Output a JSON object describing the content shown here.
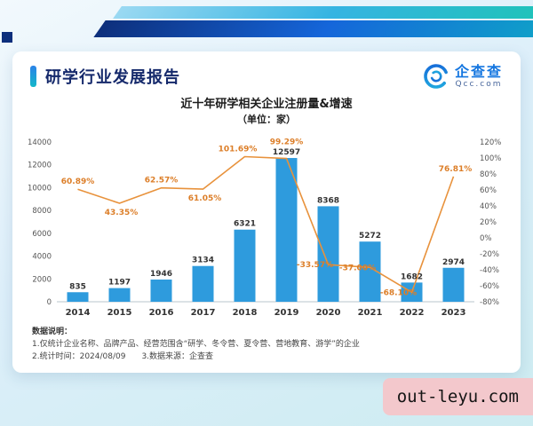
{
  "header": {
    "title": "研学行业发展报告",
    "logo": {
      "name": "企查查",
      "domain": "Qcc.com"
    }
  },
  "chart": {
    "title": "近十年研学相关企业注册量&增速",
    "unit_label": "（单位：家）"
  },
  "chart_data": {
    "type": "bar",
    "title": "近十年研学相关企业注册量&增速",
    "unit": "家",
    "categories": [
      "2014",
      "2015",
      "2016",
      "2017",
      "2018",
      "2019",
      "2020",
      "2021",
      "2022",
      "2023"
    ],
    "series": [
      {
        "name": "企业注册量",
        "type": "bar",
        "axis": "left",
        "values": [
          835,
          1197,
          1946,
          3134,
          6321,
          12597,
          8368,
          5272,
          1682,
          2974
        ]
      },
      {
        "name": "增速",
        "type": "line",
        "axis": "right",
        "values": [
          60.89,
          43.35,
          62.57,
          61.05,
          101.69,
          99.29,
          -33.57,
          -37.0,
          -68.1,
          76.81
        ],
        "labels": [
          "60.89%",
          "43.35%",
          "62.57%",
          "61.05%",
          "101.69%",
          "99.29%",
          "-33.57%",
          "-37.00%",
          "-68.10%",
          "76.81%"
        ]
      }
    ],
    "left_axis": {
      "min": 0,
      "max": 14000,
      "step": 2000
    },
    "right_axis": {
      "min": -80,
      "max": 120,
      "step": 20,
      "suffix": "%"
    },
    "colors": {
      "bar": "#2E9BDD",
      "line": "#E8923C",
      "bar_label": "#333333",
      "line_label": "#DC7E28"
    },
    "legend": "none",
    "grid": false
  },
  "notes": {
    "heading": "数据说明：",
    "line1": "1.仅统计企业名称、品牌产品、经营范围含“研学、冬令营、夏令营、营地教育、游学”的企业",
    "line2": "2.统计时间：2024/08/09　　3.数据来源：企查查"
  },
  "watermark": {
    "text": "out-leyu.com"
  }
}
